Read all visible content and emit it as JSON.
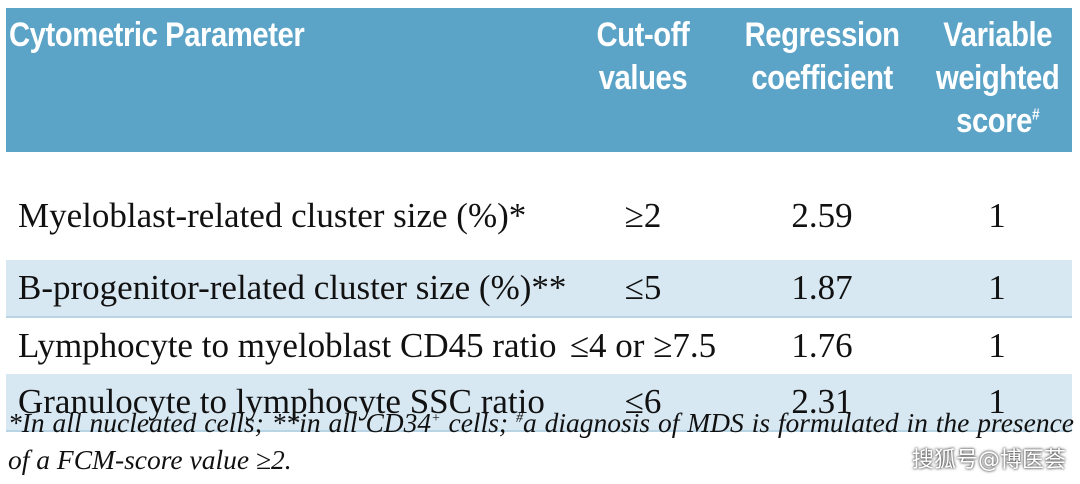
{
  "table": {
    "headers": {
      "parameter": "Cytometric Parameter",
      "cutoff_line1": "Cut-off",
      "cutoff_line2": "values",
      "regression_line1": "Regression",
      "regression_line2": "coefficient",
      "weighted_line1": "Variable",
      "weighted_line2": "weighted",
      "weighted_line3": "score",
      "weighted_mark": "#"
    },
    "rows": [
      {
        "parameter": "Myeloblast-related cluster size (%)*",
        "cutoff": "≥2",
        "coefficient": "2.59",
        "score": "1"
      },
      {
        "parameter": "B-progenitor-related cluster size (%)**",
        "cutoff": "≤5",
        "coefficient": "1.87",
        "score": "1"
      },
      {
        "parameter": "Lymphocyte to myeloblast CD45 ratio",
        "cutoff": "≤4 or ≥7.5",
        "coefficient": "1.76",
        "score": "1"
      },
      {
        "parameter": "Granulocyte to lymphocyte SSC ratio",
        "cutoff": "≤6",
        "coefficient": "2.31",
        "score": "1"
      }
    ]
  },
  "footnote": {
    "part1": "*In all nucleated cells; **in all CD34",
    "sup1": "+",
    "part2": " cells; ",
    "sup2": "#",
    "part3": "a diagnosis of MDS is formulated in the presence of a FCM-score value ≥2."
  },
  "watermark": "搜狐号@博医荟"
}
